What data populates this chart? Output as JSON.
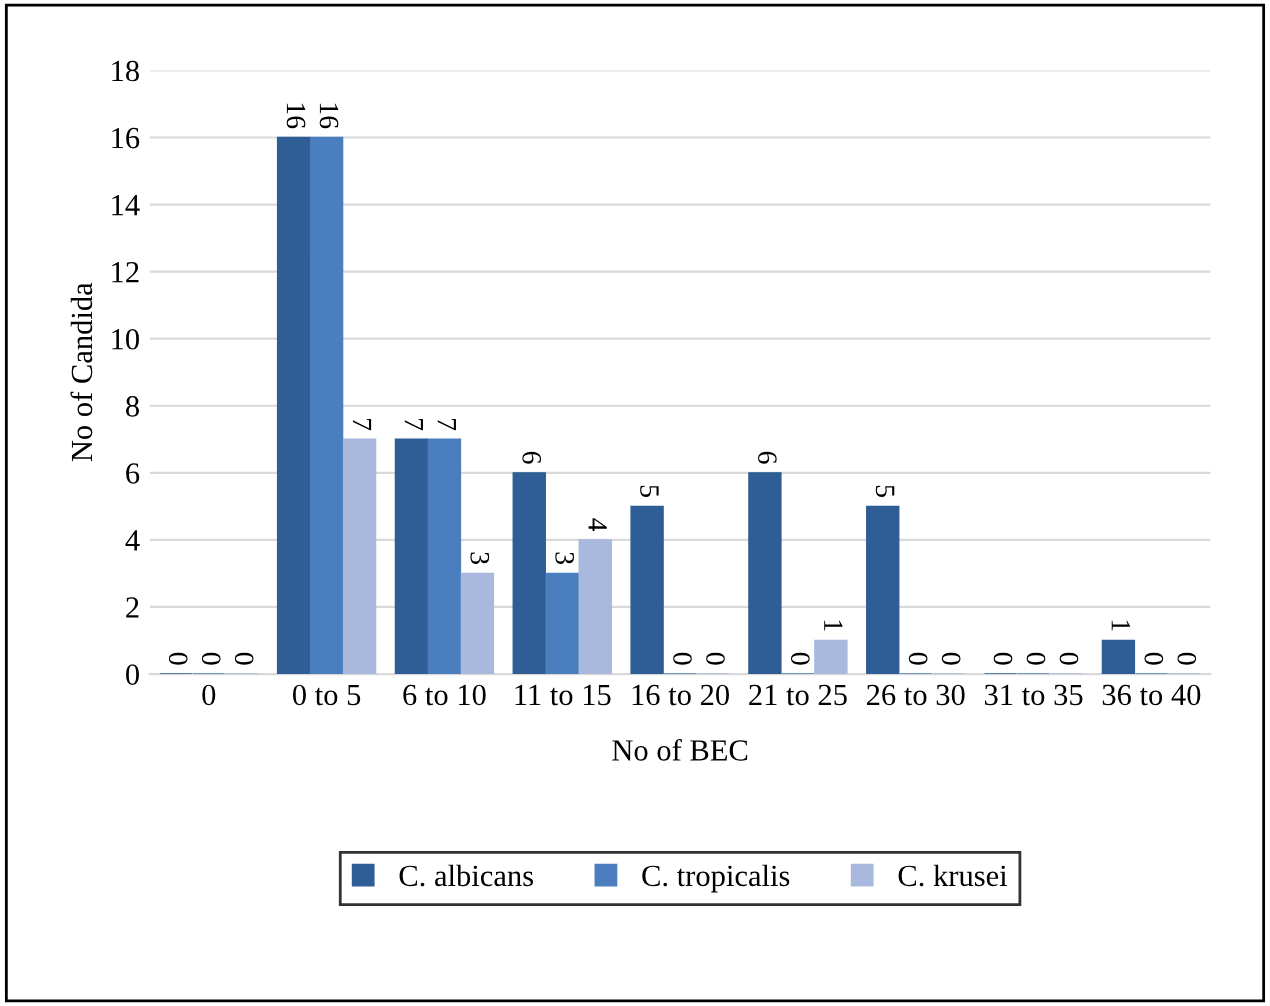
{
  "chart_data": {
    "type": "bar",
    "xlabel": "No of BEC",
    "ylabel": "No of Candida",
    "categories": [
      "0",
      "0 to 5",
      "6 to 10",
      "11 to 15",
      "16 to 20",
      "21 to 25",
      "26 to 30",
      "31 to 35",
      "36 to 40"
    ],
    "series": [
      {
        "name": "C. albicans",
        "color": "#2f5d95",
        "values": [
          0,
          16,
          7,
          6,
          5,
          6,
          5,
          0,
          1
        ]
      },
      {
        "name": "C. tropicalis",
        "color": "#4a7ebf",
        "values": [
          0,
          16,
          7,
          3,
          0,
          0,
          0,
          0,
          0
        ]
      },
      {
        "name": "C. krusei",
        "color": "#a9b8dd",
        "values": [
          0,
          7,
          3,
          4,
          0,
          1,
          0,
          0,
          0
        ]
      }
    ],
    "ylim": [
      0,
      18
    ],
    "yticks": [
      0,
      2,
      4,
      6,
      8,
      10,
      12,
      14,
      16,
      18
    ],
    "grid": "y",
    "legend": "bottom",
    "data_labels": true
  }
}
